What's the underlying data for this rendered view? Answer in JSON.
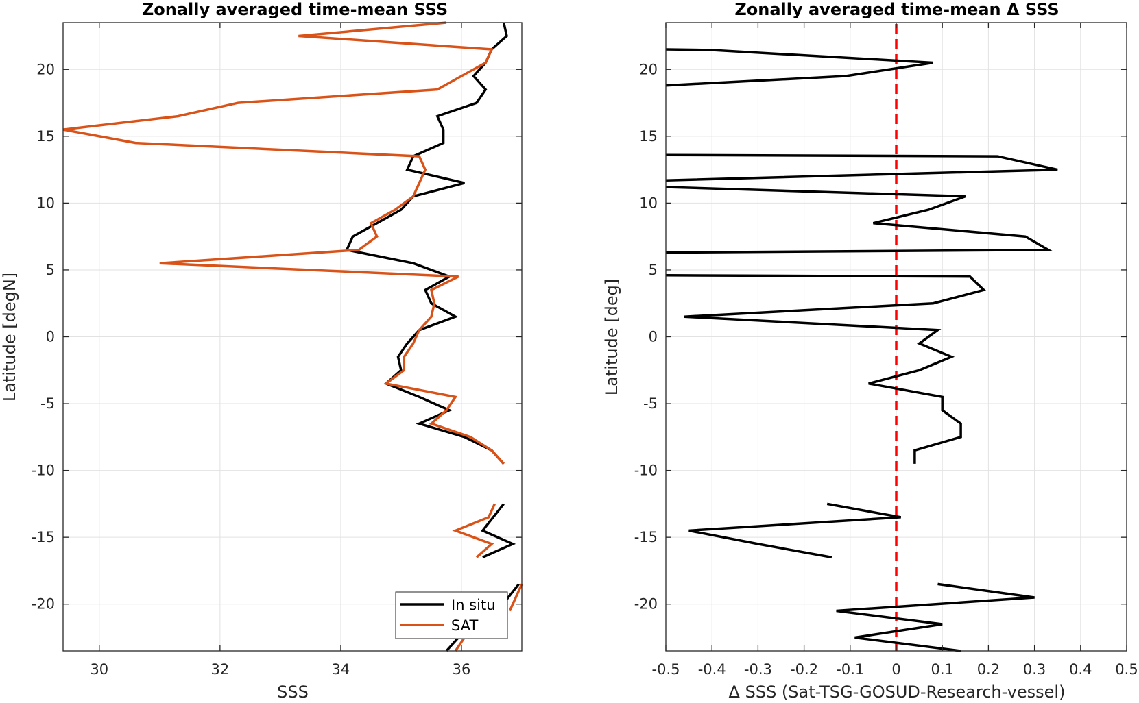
{
  "chart_data": [
    {
      "type": "line",
      "title": "Zonally averaged time-mean SSS",
      "xlabel": "SSS",
      "ylabel": "Latitude [degN]",
      "xlim": [
        29.4,
        37
      ],
      "ylim": [
        -23.5,
        23.5
      ],
      "xticks": [
        30,
        32,
        34,
        36
      ],
      "yticks": [
        -20,
        -15,
        -10,
        -5,
        0,
        5,
        10,
        15,
        20
      ],
      "grid": true,
      "legend": {
        "placement": "bottom-right",
        "entries": [
          "In situ",
          "SAT"
        ]
      },
      "series": [
        {
          "name": "In situ",
          "color": "#000000",
          "segments": [
            [
              [
                36.7,
                23.5
              ],
              [
                36.75,
                22.5
              ],
              [
                36.5,
                21.5
              ],
              [
                36.4,
                20.5
              ],
              [
                36.2,
                19.5
              ],
              [
                36.4,
                18.5
              ],
              [
                36.25,
                17.5
              ],
              [
                35.6,
                16.5
              ],
              [
                35.7,
                15.5
              ],
              [
                35.7,
                14.5
              ],
              [
                35.2,
                13.5
              ],
              [
                35.1,
                12.5
              ],
              [
                36.05,
                11.5
              ],
              [
                35.2,
                10.5
              ],
              [
                35.0,
                9.5
              ],
              [
                34.6,
                8.5
              ],
              [
                34.2,
                7.5
              ],
              [
                34.1,
                6.5
              ],
              [
                35.2,
                5.5
              ],
              [
                35.8,
                4.5
              ],
              [
                35.4,
                3.5
              ],
              [
                35.5,
                2.5
              ],
              [
                35.9,
                1.5
              ],
              [
                35.3,
                0.5
              ],
              [
                35.1,
                -0.5
              ],
              [
                34.95,
                -1.5
              ],
              [
                35.0,
                -2.5
              ],
              [
                34.75,
                -3.5
              ],
              [
                35.3,
                -4.5
              ],
              [
                35.8,
                -5.5
              ],
              [
                35.3,
                -6.5
              ],
              [
                36.05,
                -7.5
              ],
              [
                36.5,
                -8.5
              ],
              [
                36.7,
                -9.5
              ]
            ],
            [
              [
                36.7,
                -12.5
              ],
              [
                36.35,
                -14.5
              ],
              [
                36.85,
                -15.5
              ],
              [
                36.35,
                -16.5
              ]
            ],
            [
              [
                36.95,
                -18.5
              ],
              [
                36.6,
                -20.5
              ]
            ],
            [
              [
                35.95,
                -22.5
              ],
              [
                35.75,
                -23.5
              ]
            ]
          ]
        },
        {
          "name": "SAT",
          "color": "#D95319",
          "segments": [
            [
              [
                35.75,
                23.5
              ],
              [
                33.3,
                22.5
              ],
              [
                36.5,
                21.5
              ],
              [
                36.4,
                20.5
              ],
              [
                36.0,
                19.5
              ],
              [
                35.6,
                18.5
              ],
              [
                32.3,
                17.5
              ],
              [
                31.3,
                16.5
              ],
              [
                29.4,
                15.5
              ],
              [
                30.6,
                14.5
              ],
              [
                35.3,
                13.5
              ],
              [
                35.4,
                12.5
              ],
              [
                35.3,
                11.5
              ],
              [
                35.2,
                10.5
              ],
              [
                34.9,
                9.5
              ],
              [
                34.5,
                8.5
              ],
              [
                34.6,
                7.5
              ],
              [
                34.3,
                6.5
              ],
              [
                31.0,
                5.5
              ],
              [
                35.95,
                4.5
              ],
              [
                35.5,
                3.5
              ],
              [
                35.55,
                2.5
              ],
              [
                35.5,
                1.5
              ],
              [
                35.3,
                0.5
              ],
              [
                35.2,
                -0.5
              ],
              [
                35.05,
                -1.5
              ],
              [
                35.05,
                -2.5
              ],
              [
                34.75,
                -3.5
              ],
              [
                35.9,
                -4.5
              ],
              [
                35.75,
                -5.5
              ],
              [
                35.5,
                -6.5
              ],
              [
                36.15,
                -7.5
              ],
              [
                36.5,
                -8.5
              ],
              [
                36.7,
                -9.5
              ]
            ],
            [
              [
                36.55,
                -12.5
              ],
              [
                36.45,
                -13.5
              ],
              [
                35.9,
                -14.5
              ],
              [
                36.5,
                -15.5
              ],
              [
                36.25,
                -16.5
              ]
            ],
            [
              [
                37.0,
                -18.5
              ],
              [
                36.8,
                -20.5
              ]
            ],
            [
              [
                36.05,
                -22.5
              ],
              [
                35.9,
                -23.5
              ]
            ]
          ]
        }
      ]
    },
    {
      "type": "line",
      "title": "Zonally averaged time-mean Δ SSS",
      "xlabel": "Δ SSS (Sat-TSG-GOSUD-Research-vessel)",
      "ylabel": "Latitude [deg]",
      "xlim": [
        -0.5,
        0.5
      ],
      "ylim": [
        -23.5,
        23.5
      ],
      "xticks": [
        -0.5,
        -0.4,
        -0.3,
        -0.2,
        -0.1,
        0,
        0.1,
        0.2,
        0.3,
        0.4,
        0.5
      ],
      "yticks": [
        -20,
        -15,
        -10,
        -5,
        0,
        5,
        10,
        15,
        20
      ],
      "grid": true,
      "reference_line": {
        "x": 0,
        "color": "#FF0000",
        "style": "dashed"
      },
      "series": [
        {
          "color": "#000000",
          "segments": [
            [
              [
                -0.5,
                21.5
              ],
              [
                -0.4,
                21.45
              ],
              [
                0.08,
                20.5
              ],
              [
                -0.11,
                19.5
              ],
              [
                -0.5,
                18.8
              ]
            ],
            [
              [
                -0.5,
                13.6
              ],
              [
                0.22,
                13.5
              ],
              [
                0.35,
                12.5
              ],
              [
                -0.5,
                11.7
              ]
            ],
            [
              [
                -0.5,
                11.2
              ],
              [
                0.15,
                10.5
              ],
              [
                0.07,
                9.5
              ],
              [
                -0.05,
                8.5
              ],
              [
                0.28,
                7.5
              ],
              [
                0.33,
                6.5
              ],
              [
                -0.5,
                6.3
              ]
            ],
            [
              [
                -0.5,
                4.6
              ],
              [
                0.16,
                4.5
              ],
              [
                0.19,
                3.5
              ],
              [
                0.08,
                2.5
              ],
              [
                -0.46,
                1.5
              ],
              [
                0.09,
                0.5
              ],
              [
                0.05,
                -0.5
              ],
              [
                0.12,
                -1.5
              ],
              [
                0.05,
                -2.5
              ],
              [
                -0.06,
                -3.5
              ],
              [
                0.1,
                -4.5
              ],
              [
                0.1,
                -5.5
              ],
              [
                0.14,
                -6.5
              ],
              [
                0.14,
                -7.5
              ],
              [
                0.04,
                -8.5
              ],
              [
                0.04,
                -9.5
              ]
            ],
            [
              [
                -0.15,
                -12.5
              ],
              [
                0.01,
                -13.5
              ],
              [
                -0.45,
                -14.5
              ],
              [
                -0.3,
                -15.5
              ],
              [
                -0.14,
                -16.5
              ]
            ],
            [
              [
                0.09,
                -18.5
              ],
              [
                0.3,
                -19.5
              ],
              [
                -0.13,
                -20.5
              ],
              [
                0.1,
                -21.5
              ],
              [
                -0.09,
                -22.5
              ],
              [
                0.14,
                -23.5
              ]
            ]
          ]
        }
      ]
    }
  ]
}
